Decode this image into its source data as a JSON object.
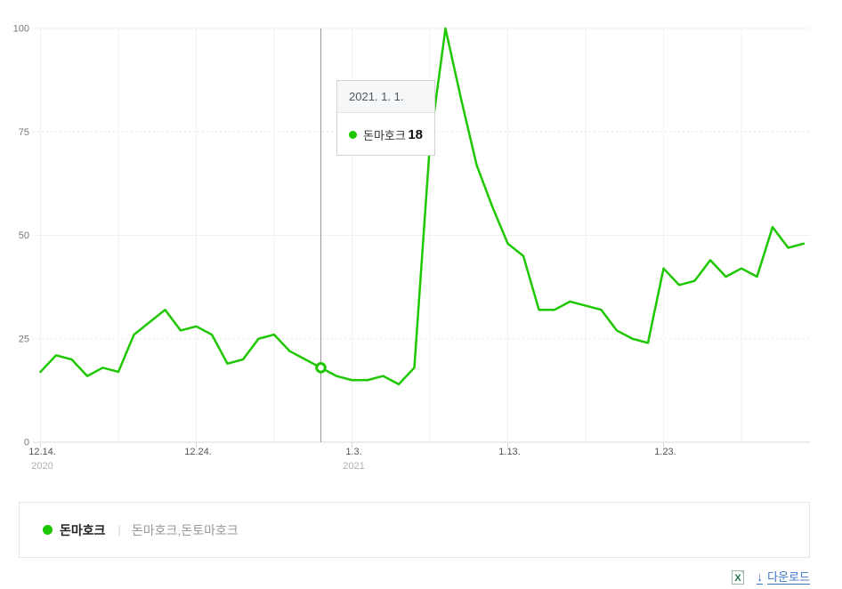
{
  "tooltip": {
    "date": "2021. 1. 1.",
    "series": "돈마호크",
    "value": "18"
  },
  "legend": {
    "name": "돈마호크",
    "divider": "|",
    "keywords": "돈마호크,돈토마호크"
  },
  "download": {
    "label": "다운로드",
    "arrow": "↓"
  },
  "colors": {
    "line": "#1ec800",
    "grid": "#f0f0f0",
    "grid_dotted": "#e5e5e5",
    "axis": "#d9d9d9",
    "hover_line": "#999999",
    "link": "#3d76c4",
    "x_label": "#555555",
    "x_year": "#b0b0b0",
    "y_label": "#777777"
  },
  "chart_data": {
    "type": "line",
    "title": "",
    "xlabel": "",
    "ylabel": "",
    "ylim": [
      0,
      100
    ],
    "grid": "on",
    "legend_position": "bottom",
    "x": [
      "12.14",
      "12.15",
      "12.16",
      "12.17",
      "12.18",
      "12.19",
      "12.20",
      "12.21",
      "12.22",
      "12.23",
      "12.24",
      "12.25",
      "12.26",
      "12.27",
      "12.28",
      "12.29",
      "12.30",
      "12.31",
      "1.1",
      "1.2",
      "1.3",
      "1.4",
      "1.5",
      "1.6",
      "1.7",
      "1.8",
      "1.9",
      "1.10",
      "1.11",
      "1.12",
      "1.13",
      "1.14",
      "1.15",
      "1.16",
      "1.17",
      "1.18",
      "1.19",
      "1.20",
      "1.21",
      "1.22",
      "1.23",
      "1.24",
      "1.25",
      "1.26",
      "1.27",
      "1.28",
      "1.29",
      "1.30",
      "1.31",
      "2.1"
    ],
    "series": [
      {
        "name": "돈마호크",
        "color": "#1ec800",
        "values": [
          17,
          21,
          20,
          16,
          18,
          17,
          26,
          29,
          32,
          27,
          28,
          26,
          19,
          20,
          25,
          26,
          22,
          20,
          18,
          16,
          15,
          15,
          16,
          14,
          18,
          72,
          100,
          83,
          67,
          57,
          48,
          45,
          32,
          32,
          34,
          33,
          32,
          27,
          25,
          24,
          42,
          38,
          39,
          44,
          40,
          42,
          40,
          52,
          47,
          48
        ]
      }
    ],
    "x_ticks": [
      {
        "day": 0,
        "label": "12.14.",
        "sub": "2020"
      },
      {
        "day": 10,
        "label": "12.24.",
        "sub": ""
      },
      {
        "day": 20,
        "label": "1.3.",
        "sub": "2021"
      },
      {
        "day": 30,
        "label": "1.13.",
        "sub": ""
      },
      {
        "day": 40,
        "label": "1.23.",
        "sub": ""
      }
    ],
    "grid_day_step": 5,
    "grid_day_max": 45,
    "y_ticks": [
      {
        "value": 0,
        "label": "0"
      },
      {
        "value": 25,
        "label": "25"
      },
      {
        "value": 50,
        "label": "50"
      },
      {
        "value": 75,
        "label": "75"
      },
      {
        "value": 100,
        "label": "100"
      }
    ],
    "hover": {
      "index": 18,
      "date": "2021. 1. 1.",
      "value": 18
    }
  }
}
